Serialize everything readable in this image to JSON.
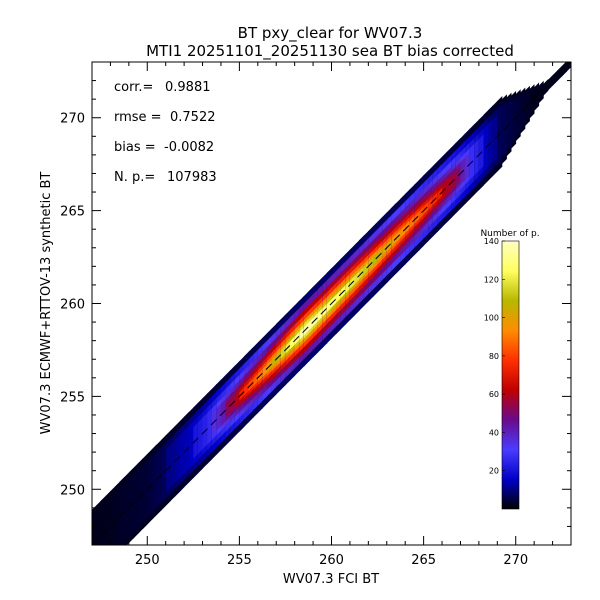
{
  "chart_data": {
    "type": "scatter",
    "title": "BT pxy_clear for WV07.3",
    "subtitle": "MTI1 20251101_20251130 sea BT bias corrected",
    "xlabel": "WV07.3 FCI BT",
    "ylabel": "WV07.3 ECMWF+RTTOV-13 synthetic BT",
    "xlim": [
      247,
      273
    ],
    "ylim": [
      247,
      273
    ],
    "x_ticks": [
      250,
      255,
      260,
      265,
      270
    ],
    "y_ticks": [
      250,
      255,
      260,
      265,
      270
    ],
    "grid": false,
    "one_to_one_line": true,
    "stats": [
      {
        "label": "corr.=",
        "value": "0.9881"
      },
      {
        "label": "rmse =",
        "value": "0.7522"
      },
      {
        "label": "bias =",
        "value": "-0.0082"
      },
      {
        "label": "N. p.=",
        "value": "107983"
      }
    ],
    "density": {
      "description_units": "Number of p.",
      "along_axis_profile": [
        {
          "x": 247.0,
          "count": 5
        },
        {
          "x": 250.0,
          "count": 12
        },
        {
          "x": 253.0,
          "count": 35
        },
        {
          "x": 256.0,
          "count": 80
        },
        {
          "x": 258.5,
          "count": 125
        },
        {
          "x": 261.0,
          "count": 110
        },
        {
          "x": 264.0,
          "count": 85
        },
        {
          "x": 266.5,
          "count": 60
        },
        {
          "x": 269.0,
          "count": 20
        },
        {
          "x": 271.5,
          "count": 3
        }
      ]
    },
    "colorbar": {
      "title": "Number of p.",
      "min": 0,
      "max": 140,
      "ticks": [
        20,
        40,
        60,
        80,
        100,
        120,
        140
      ],
      "placement": "right-inside",
      "colors": [
        "#000000",
        "#0000c8",
        "#4a3cff",
        "#6a0a8a",
        "#c00000",
        "#ff3000",
        "#ff8c00",
        "#b8b800",
        "#ffff60",
        "#ffffc0"
      ]
    }
  }
}
